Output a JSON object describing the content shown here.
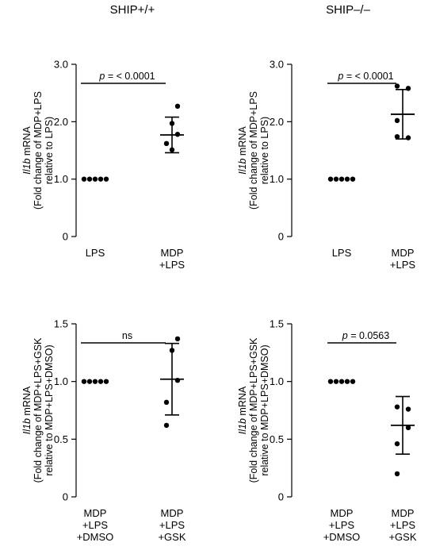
{
  "column_titles": [
    "SHIP+/+",
    "SHIP–/–"
  ],
  "chart_data": [
    {
      "type": "scatter",
      "column_title": "SHIP+/+",
      "ylabel_gene": "Il1b",
      "ylabel_rest": " mRNA",
      "ylabel_line2": "(Fold change of MDP+LPS",
      "ylabel_line3": "relative to LPS)",
      "ylim": [
        0,
        3.0
      ],
      "yticks": [
        0,
        1.0,
        2.0,
        3.0
      ],
      "ytick_labels": [
        "0",
        "1.0",
        "2.0",
        "3.0"
      ],
      "categories": [
        [
          "LPS"
        ],
        [
          "MDP",
          "+LPS"
        ]
      ],
      "points": [
        [
          1.0,
          1.0,
          1.0,
          1.0,
          1.0
        ],
        [
          2.27,
          1.97,
          1.78,
          1.62,
          1.51
        ]
      ],
      "point_offsets": [
        [
          -2,
          -1,
          0,
          1,
          2
        ],
        [
          1,
          0,
          1,
          -1,
          0
        ]
      ],
      "mean": [
        1.0,
        1.77
      ],
      "sd": [
        0,
        0.31
      ],
      "annotation": {
        "prefix": "p",
        "text": " = < 0.0001"
      }
    },
    {
      "type": "scatter",
      "column_title": "SHIP–/–",
      "ylabel_gene": "Il1b",
      "ylabel_rest": " mRNA",
      "ylabel_line2": "(Fold change of MDP+LPS",
      "ylabel_line3": "relative to LPS)",
      "ylim": [
        0,
        3.0
      ],
      "yticks": [
        0,
        1.0,
        2.0,
        3.0
      ],
      "ytick_labels": [
        "0",
        "1.0",
        "2.0",
        "3.0"
      ],
      "categories": [
        [
          "LPS"
        ],
        [
          "MDP",
          "+LPS"
        ]
      ],
      "points": [
        [
          1.0,
          1.0,
          1.0,
          1.0,
          1.0
        ],
        [
          2.62,
          2.58,
          2.02,
          1.74,
          1.72
        ]
      ],
      "point_offsets": [
        [
          -2,
          -1,
          0,
          1,
          2
        ],
        [
          -1,
          1,
          -1,
          -1,
          1
        ]
      ],
      "mean": [
        1.0,
        2.13
      ],
      "sd": [
        0,
        0.43
      ],
      "annotation": {
        "prefix": "p",
        "text": " = < 0.0001"
      }
    },
    {
      "type": "scatter",
      "column_title": "SHIP+/+",
      "ylabel_gene": "Il1b",
      "ylabel_rest": " mRNA",
      "ylabel_line2": "(Fold change of MDP+LPS+GSK",
      "ylabel_line3": "relative to MDP+LPS+DMSO)",
      "ylim": [
        0,
        1.5
      ],
      "yticks": [
        0,
        0.5,
        1.0,
        1.5
      ],
      "ytick_labels": [
        "0",
        "0.5",
        "1.0",
        "1.5"
      ],
      "categories": [
        [
          "MDP",
          "+LPS",
          "+DMSO"
        ],
        [
          "MDP",
          "+LPS",
          "+GSK"
        ]
      ],
      "points": [
        [
          1.0,
          1.0,
          1.0,
          1.0,
          1.0
        ],
        [
          1.37,
          1.27,
          1.01,
          0.82,
          0.62
        ]
      ],
      "point_offsets": [
        [
          -2,
          -1,
          0,
          1,
          2
        ],
        [
          1,
          0,
          1,
          -1,
          -1
        ]
      ],
      "mean": [
        1.0,
        1.02
      ],
      "sd": [
        0,
        0.31
      ],
      "annotation": {
        "prefix": "",
        "text": "ns"
      }
    },
    {
      "type": "scatter",
      "column_title": "SHIP–/–",
      "ylabel_gene": "Il1b",
      "ylabel_rest": " mRNA",
      "ylabel_line2": "(Fold change of MDP+LPS+GSK",
      "ylabel_line3": "relative to MDP+LPS+DMSO)",
      "ylim": [
        0,
        1.5
      ],
      "yticks": [
        0,
        0.5,
        1.0,
        1.5
      ],
      "ytick_labels": [
        "0",
        "0.5",
        "1.0",
        "1.5"
      ],
      "categories": [
        [
          "MDP",
          "+LPS",
          "+DMSO"
        ],
        [
          "MDP",
          "+LPS",
          "+GSK"
        ]
      ],
      "points": [
        [
          1.0,
          1.0,
          1.0,
          1.0,
          1.0
        ],
        [
          0.78,
          0.76,
          0.6,
          0.46,
          0.2
        ]
      ],
      "point_offsets": [
        [
          -2,
          -1,
          0,
          1,
          2
        ],
        [
          -1,
          1,
          1,
          -1,
          -1
        ]
      ],
      "mean": [
        1.0,
        0.62
      ],
      "sd": [
        0,
        0.25
      ],
      "annotation": {
        "prefix": "p",
        "text": " = 0.0563"
      }
    }
  ]
}
